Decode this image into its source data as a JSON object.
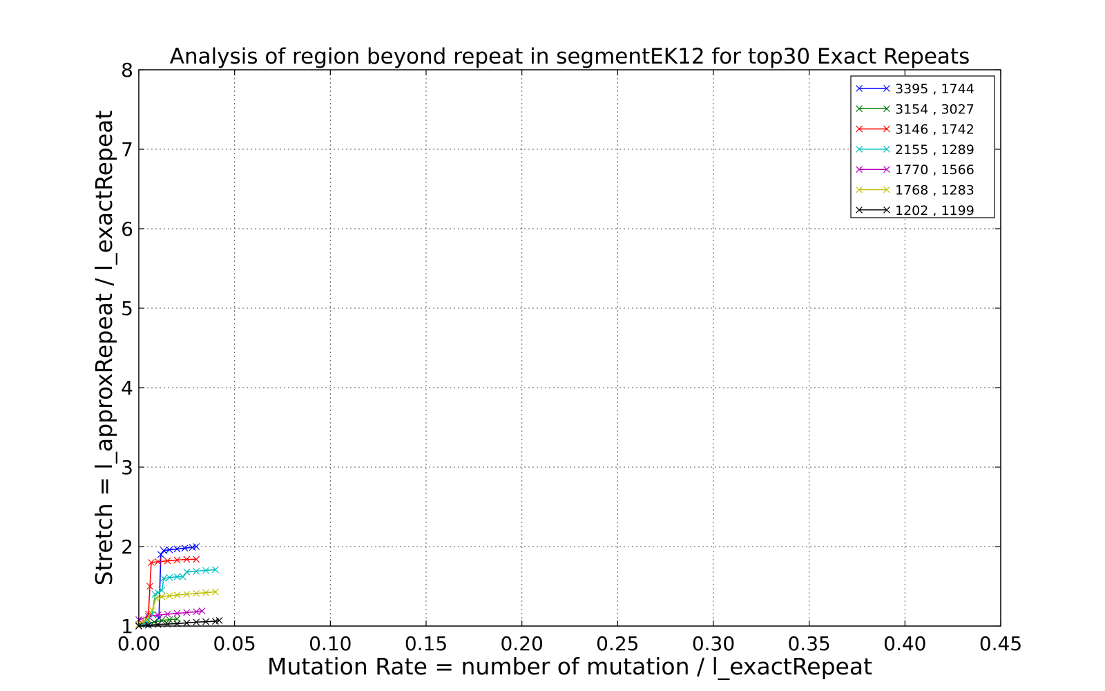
{
  "chart_data": {
    "type": "line",
    "title": "Analysis of region beyond repeat in segmentEK12 for top30 Exact Repeats",
    "xlabel": "Mutation Rate = number of mutation / l_exactRepeat",
    "ylabel": "Stretch =  l_approxRepeat / l_exactRepeat",
    "xlim": [
      0.0,
      0.45
    ],
    "ylim": [
      1,
      8
    ],
    "xticks": [
      "0.00",
      "0.05",
      "0.10",
      "0.15",
      "0.20",
      "0.25",
      "0.30",
      "0.35",
      "0.40",
      "0.45"
    ],
    "yticks": [
      "1",
      "2",
      "3",
      "4",
      "5",
      "6",
      "7",
      "8"
    ],
    "grid": true,
    "legend_position": "top-right",
    "marker": "x",
    "series": [
      {
        "name": "3395 , 1744",
        "color": "#0000ff",
        "x": [
          0.0,
          0.004,
          0.008,
          0.0105,
          0.0115,
          0.013,
          0.016,
          0.02,
          0.024,
          0.028,
          0.03
        ],
        "y": [
          1.0,
          1.02,
          1.05,
          1.1,
          1.9,
          1.95,
          1.96,
          1.97,
          1.98,
          1.99,
          2.0
        ]
      },
      {
        "name": "3154 , 3027",
        "color": "#008000",
        "x": [
          0.0,
          0.004,
          0.008,
          0.012,
          0.016,
          0.02
        ],
        "y": [
          1.0,
          1.03,
          1.05,
          1.07,
          1.08,
          1.09
        ]
      },
      {
        "name": "3146 , 1742",
        "color": "#ff0000",
        "x": [
          0.0,
          0.003,
          0.005,
          0.0058,
          0.0065,
          0.01,
          0.015,
          0.02,
          0.025,
          0.03
        ],
        "y": [
          1.0,
          1.05,
          1.15,
          1.5,
          1.8,
          1.81,
          1.82,
          1.83,
          1.84,
          1.84
        ]
      },
      {
        "name": "2155 , 1289",
        "color": "#00bfbf",
        "x": [
          0.0,
          0.004,
          0.007,
          0.0085,
          0.01,
          0.012,
          0.013,
          0.016,
          0.02,
          0.023,
          0.025,
          0.03,
          0.035,
          0.04
        ],
        "y": [
          1.0,
          1.05,
          1.15,
          1.4,
          1.42,
          1.45,
          1.6,
          1.61,
          1.62,
          1.62,
          1.68,
          1.69,
          1.7,
          1.71
        ]
      },
      {
        "name": "1770 , 1566",
        "color": "#bf00bf",
        "x": [
          0.0,
          0.005,
          0.01,
          0.015,
          0.02,
          0.025,
          0.03,
          0.033
        ],
        "y": [
          1.08,
          1.12,
          1.14,
          1.15,
          1.16,
          1.17,
          1.18,
          1.19
        ]
      },
      {
        "name": "1768 , 1283",
        "color": "#bfbf00",
        "x": [
          0.0,
          0.004,
          0.007,
          0.009,
          0.012,
          0.016,
          0.02,
          0.025,
          0.03,
          0.035,
          0.04
        ],
        "y": [
          1.02,
          1.08,
          1.2,
          1.35,
          1.37,
          1.38,
          1.39,
          1.4,
          1.41,
          1.42,
          1.43
        ]
      },
      {
        "name": "1202 , 1199",
        "color": "#000000",
        "x": [
          0.0,
          0.005,
          0.01,
          0.015,
          0.02,
          0.025,
          0.03,
          0.035,
          0.04,
          0.042
        ],
        "y": [
          1.0,
          1.01,
          1.02,
          1.025,
          1.03,
          1.04,
          1.05,
          1.055,
          1.06,
          1.07
        ]
      }
    ]
  }
}
